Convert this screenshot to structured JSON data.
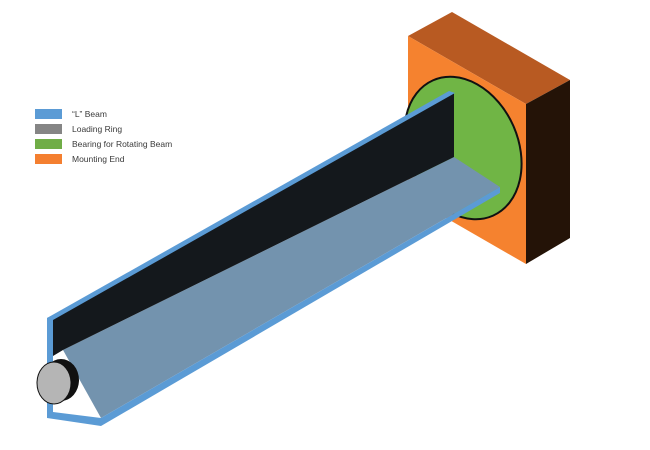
{
  "legend": {
    "items": [
      {
        "label": "“L” Beam",
        "color": "#5b9bd5"
      },
      {
        "label": "Loading Ring",
        "color": "#858585"
      },
      {
        "label": "Bearing for Rotating Beam",
        "color": "#70ad47"
      },
      {
        "label": "Mounting End",
        "color": "#f47f30"
      }
    ]
  },
  "colors": {
    "mount_front": "#f5822f",
    "mount_top": "#b85a22",
    "mount_side": "#241307",
    "bearing": "#70b545",
    "beam_edge": "#5b9bd5",
    "beam_dark": "#14181c",
    "beam_bottom": "#7393ae",
    "ring_face": "#b5b5b5",
    "ring_rim": "#111111"
  }
}
